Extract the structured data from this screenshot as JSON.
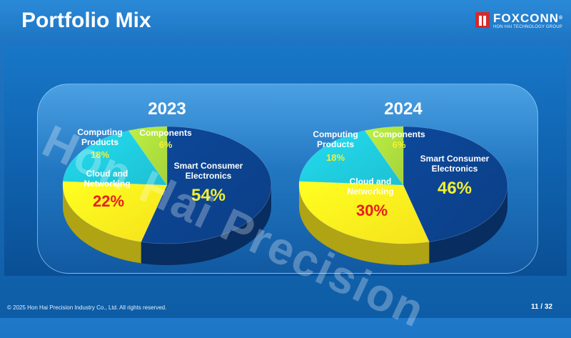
{
  "header": {
    "title": "Portfolio Mix"
  },
  "logo": {
    "name": "FOXCONN",
    "reg": "®",
    "sub": "HON HAI TECHNOLOGY GROUP"
  },
  "watermark": "Hon Hai Precision",
  "footer": {
    "copyright": "© 2025 Hon Hai Precision Industry Co., Ltd. All rights reserved.",
    "page": "11 / 32"
  },
  "colors": {
    "smart_consumer": "#0b3f86",
    "cloud_networking": "#f5e21c",
    "computing": "#1ec0d2",
    "components": "#a4d23a"
  },
  "chart_data": [
    {
      "type": "pie",
      "title": "2023",
      "slices": [
        {
          "name": "Smart Consumer Electronics",
          "value": 54,
          "label": "54%"
        },
        {
          "name": "Cloud and Networking",
          "value": 22,
          "label": "22%"
        },
        {
          "name": "Computing Products",
          "value": 18,
          "label": "18%"
        },
        {
          "name": "Components",
          "value": 6,
          "label": "6%"
        }
      ]
    },
    {
      "type": "pie",
      "title": "2024",
      "slices": [
        {
          "name": "Smart Consumer Electronics",
          "value": 46,
          "label": "46%"
        },
        {
          "name": "Cloud and Networking",
          "value": 30,
          "label": "30%"
        },
        {
          "name": "Computing Products",
          "value": 18,
          "label": "18%"
        },
        {
          "name": "Components",
          "value": 6,
          "label": "6%"
        }
      ]
    }
  ],
  "label_lines": {
    "smart_consumer": [
      "Smart Consumer",
      "Electronics"
    ],
    "cloud_networking": [
      "Cloud and",
      "Networking"
    ],
    "computing": [
      "Computing",
      "Products"
    ],
    "components": [
      "Components"
    ]
  }
}
